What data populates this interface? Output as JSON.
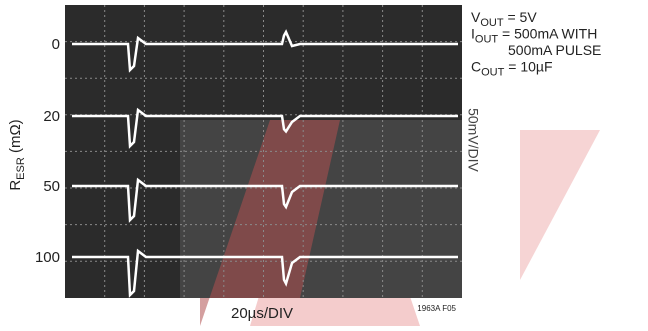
{
  "y_axis_label": {
    "symbol": "R",
    "subscript": "ESR",
    "text": " (mΩ)"
  },
  "trace_labels": [
    "0",
    "20",
    "50",
    "100"
  ],
  "x_axis_label": "20µs/DIV",
  "side_label": "50mV/DIV",
  "figure_id": "1963A F05",
  "conditions": [
    {
      "symbol": "V",
      "subscript": "OUT",
      "text": " = 5V"
    },
    {
      "symbol": "I",
      "subscript": "OUT",
      "text": " = 500mA WITH"
    },
    {
      "symbol": "",
      "subscript": "",
      "text": "500mA PULSE"
    },
    {
      "symbol": "C",
      "subscript": "OUT",
      "text": " = 10µF"
    }
  ]
}
